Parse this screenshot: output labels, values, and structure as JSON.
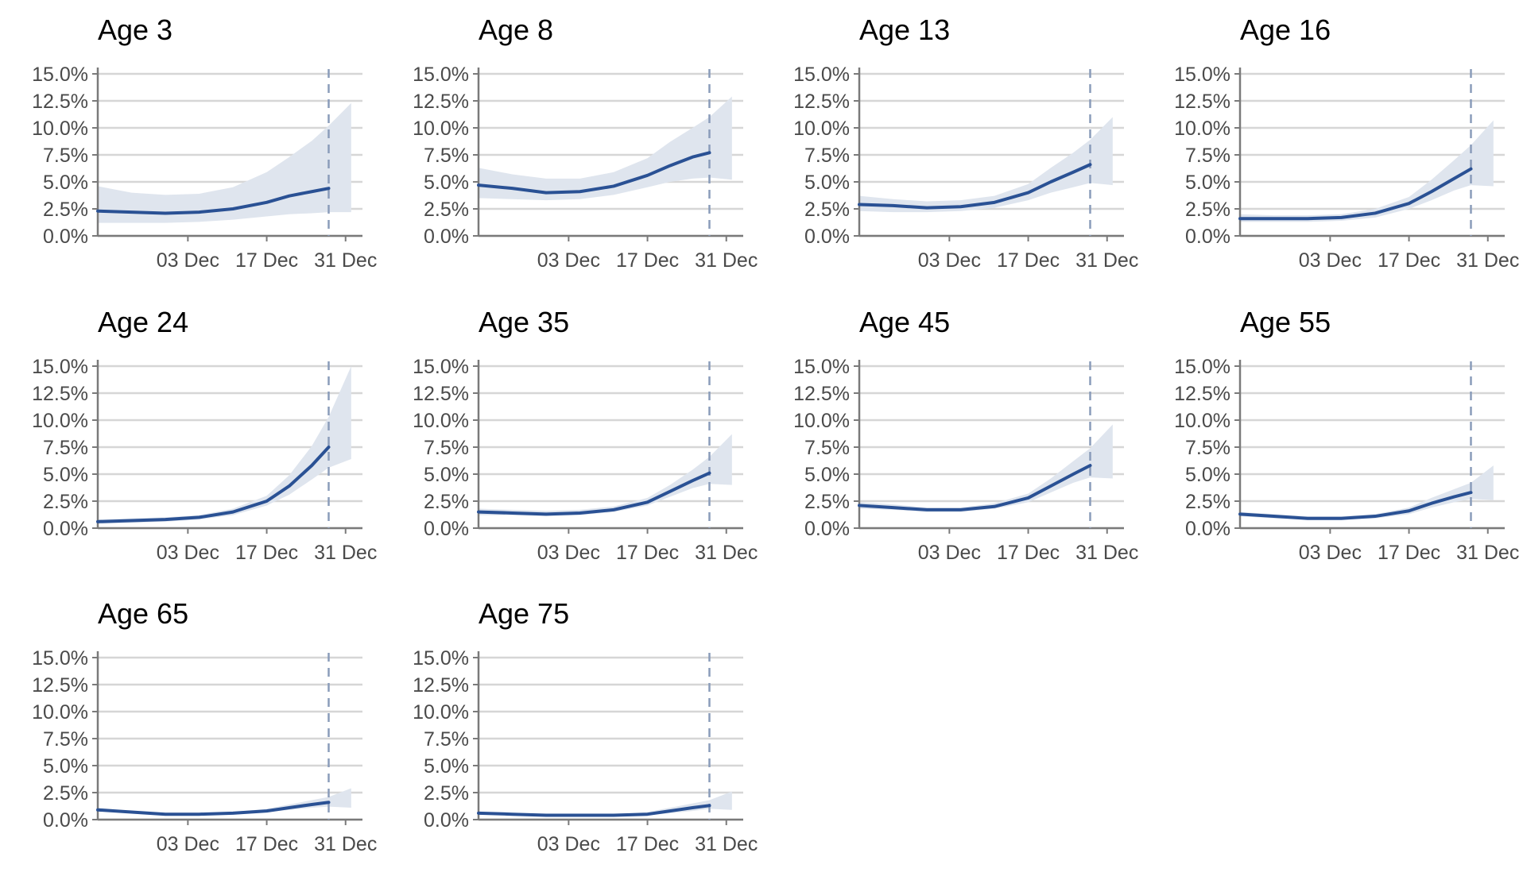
{
  "colors": {
    "line": "#2a5194",
    "band": "#dfe5ee",
    "grid": "#d6d6d6",
    "axis": "#7a7a7a",
    "vline": "#8a9cba",
    "text": "#4a4a4a",
    "title": "#000000"
  },
  "chart_data": {
    "type": "line",
    "layout": "facet grid, 4 columns",
    "y_tick_labels": [
      "0.0%",
      "2.5%",
      "5.0%",
      "7.5%",
      "10.0%",
      "12.5%",
      "15.0%"
    ],
    "x_tick_labels": [
      "03 Dec",
      "17 Dec",
      "31 Dec"
    ],
    "ylim": [
      0,
      15
    ],
    "y_unit": "percent",
    "xlim": [
      "2021-11-17",
      "2022-01-03"
    ],
    "x_ticks": [
      "2021-12-03",
      "2021-12-17",
      "2021-12-31"
    ],
    "reference_line_date": "2021-12-28",
    "grid": "horizontal",
    "x": [
      "2021-11-17",
      "2021-11-23",
      "2021-11-29",
      "2021-12-05",
      "2021-12-11",
      "2021-12-17",
      "2021-12-21",
      "2021-12-25",
      "2021-12-28"
    ],
    "band_x": [
      "2021-11-17",
      "2021-11-23",
      "2021-11-29",
      "2021-12-05",
      "2021-12-11",
      "2021-12-17",
      "2021-12-21",
      "2021-12-25",
      "2021-12-28",
      "2022-01-01"
    ],
    "panels": [
      {
        "title": "Age 3",
        "values": [
          2.3,
          2.2,
          2.1,
          2.2,
          2.5,
          3.1,
          3.7,
          4.1,
          4.4
        ],
        "band_low": [
          1.2,
          1.2,
          1.2,
          1.3,
          1.5,
          1.8,
          2.0,
          2.1,
          2.2,
          2.2
        ],
        "band_high": [
          4.6,
          4.0,
          3.8,
          3.9,
          4.5,
          5.9,
          7.3,
          8.8,
          10.2,
          12.3
        ]
      },
      {
        "title": "Age 8",
        "values": [
          4.7,
          4.4,
          4.0,
          4.1,
          4.6,
          5.6,
          6.5,
          7.3,
          7.7
        ],
        "band_low": [
          3.5,
          3.4,
          3.3,
          3.4,
          3.8,
          4.5,
          5.0,
          5.3,
          5.4,
          5.2
        ],
        "band_high": [
          6.3,
          5.7,
          5.3,
          5.3,
          5.9,
          7.2,
          8.7,
          10.0,
          11.0,
          12.9
        ]
      },
      {
        "title": "Age 13",
        "values": [
          2.9,
          2.8,
          2.6,
          2.7,
          3.1,
          4.0,
          5.0,
          5.9,
          6.6
        ],
        "band_low": [
          2.3,
          2.2,
          2.2,
          2.3,
          2.6,
          3.3,
          4.0,
          4.5,
          4.9,
          4.7
        ],
        "band_high": [
          3.7,
          3.4,
          3.2,
          3.3,
          3.7,
          4.8,
          6.3,
          7.7,
          8.9,
          11.0
        ]
      },
      {
        "title": "Age 16",
        "values": [
          1.6,
          1.6,
          1.6,
          1.7,
          2.1,
          3.0,
          4.1,
          5.3,
          6.2
        ],
        "band_low": [
          1.3,
          1.3,
          1.3,
          1.4,
          1.7,
          2.5,
          3.3,
          4.2,
          4.7,
          4.6
        ],
        "band_high": [
          2.0,
          1.9,
          1.9,
          2.0,
          2.5,
          3.6,
          5.2,
          7.0,
          8.4,
          10.7
        ]
      },
      {
        "title": "Age 24",
        "values": [
          0.6,
          0.7,
          0.8,
          1.0,
          1.5,
          2.5,
          3.9,
          5.8,
          7.5
        ],
        "band_low": [
          0.4,
          0.5,
          0.6,
          0.8,
          1.2,
          2.1,
          3.1,
          4.5,
          5.6,
          6.4
        ],
        "band_high": [
          0.8,
          0.9,
          1.0,
          1.2,
          1.8,
          3.0,
          4.9,
          7.6,
          10.3,
          15.0
        ]
      },
      {
        "title": "Age 35",
        "values": [
          1.5,
          1.4,
          1.3,
          1.4,
          1.7,
          2.4,
          3.4,
          4.4,
          5.1
        ],
        "band_low": [
          1.2,
          1.2,
          1.1,
          1.2,
          1.5,
          2.1,
          2.9,
          3.7,
          4.1,
          4.0
        ],
        "band_high": [
          1.8,
          1.7,
          1.6,
          1.7,
          2.0,
          2.8,
          4.0,
          5.4,
          6.6,
          8.7
        ]
      },
      {
        "title": "Age 45",
        "values": [
          2.1,
          1.9,
          1.7,
          1.7,
          2.0,
          2.8,
          3.9,
          5.0,
          5.8
        ],
        "band_low": [
          1.8,
          1.7,
          1.5,
          1.5,
          1.8,
          2.4,
          3.3,
          4.2,
          4.7,
          4.6
        ],
        "band_high": [
          2.4,
          2.2,
          1.9,
          1.9,
          2.3,
          3.2,
          4.6,
          6.2,
          7.4,
          9.6
        ]
      },
      {
        "title": "Age 55",
        "values": [
          1.3,
          1.1,
          0.9,
          0.9,
          1.1,
          1.6,
          2.3,
          2.9,
          3.3
        ],
        "band_low": [
          1.1,
          0.9,
          0.8,
          0.8,
          0.9,
          1.3,
          1.9,
          2.4,
          2.7,
          2.6
        ],
        "band_high": [
          1.5,
          1.3,
          1.1,
          1.1,
          1.3,
          1.9,
          2.8,
          3.6,
          4.2,
          5.8
        ]
      },
      {
        "title": "Age 65",
        "values": [
          0.9,
          0.7,
          0.5,
          0.5,
          0.6,
          0.8,
          1.1,
          1.4,
          1.6
        ],
        "band_low": [
          0.8,
          0.6,
          0.4,
          0.4,
          0.5,
          0.7,
          0.9,
          1.1,
          1.2,
          1.1
        ],
        "band_high": [
          1.1,
          0.8,
          0.6,
          0.6,
          0.7,
          1.0,
          1.4,
          1.8,
          2.1,
          2.9
        ]
      },
      {
        "title": "Age 75",
        "values": [
          0.6,
          0.5,
          0.4,
          0.4,
          0.4,
          0.5,
          0.8,
          1.1,
          1.3
        ],
        "band_low": [
          0.5,
          0.4,
          0.3,
          0.3,
          0.3,
          0.4,
          0.6,
          0.8,
          1.0,
          0.9
        ],
        "band_high": [
          0.7,
          0.6,
          0.5,
          0.5,
          0.5,
          0.7,
          1.1,
          1.5,
          1.8,
          2.6
        ]
      }
    ]
  }
}
